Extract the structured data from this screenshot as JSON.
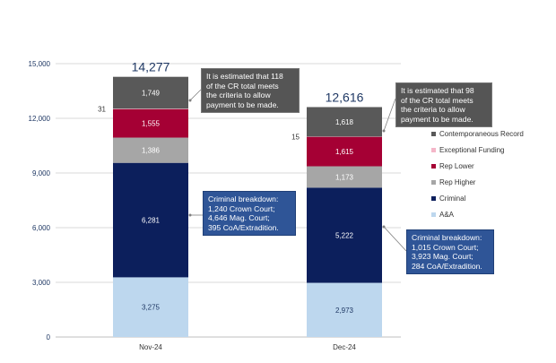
{
  "chart_data": {
    "type": "bar",
    "stacked": true,
    "categories": [
      "Nov-24",
      "Dec-24"
    ],
    "ylim": [
      0,
      15000
    ],
    "yticks": [
      "0",
      "3,000",
      "6,000",
      "9,000",
      "12,000",
      "15,000"
    ],
    "ytick_values": [
      0,
      3000,
      6000,
      9000,
      12000,
      15000
    ],
    "grid": true,
    "legend_position": "right",
    "series": [
      {
        "name": "A&A",
        "color": "#bdd7ee",
        "label_color": "#1f3864",
        "values": [
          3275,
          2973
        ],
        "labels": [
          "3,275",
          "2,973"
        ]
      },
      {
        "name": "Criminal",
        "color": "#0c1f5c",
        "label_color": "#ffffff",
        "values": [
          6281,
          5222
        ],
        "labels": [
          "6,281",
          "5,222"
        ]
      },
      {
        "name": "Rep Higher",
        "color": "#a6a6a6",
        "label_color": "#ffffff",
        "values": [
          1386,
          1173
        ],
        "labels": [
          "1,386",
          "1,173"
        ]
      },
      {
        "name": "Rep Lower",
        "color": "#a50034",
        "label_color": "#ffffff",
        "values": [
          1555,
          1615
        ],
        "labels": [
          "1,555",
          "1,615"
        ]
      },
      {
        "name": "Exceptional Funding",
        "color": "#f4b6c8",
        "label_color": "#333333",
        "values": [
          31,
          15
        ],
        "labels": [
          "31",
          "15"
        ]
      },
      {
        "name": "Contemporaneous Record",
        "color": "#595959",
        "label_color": "#ffffff",
        "values": [
          1749,
          1618
        ],
        "labels": [
          "1,749",
          "1,618"
        ]
      }
    ],
    "totals": [
      "14,277",
      "12,616"
    ],
    "annotations": [
      "It is estimated that 118\nof the CR total meets\nthe criteria to allow\npayment to be made.",
      "Criminal breakdown:\n1,240 Crown Court;\n4,646 Mag. Court;\n395 CoA/Extradition.",
      "It is estimated that 98\nof the CR total meets\nthe criteria to allow\npayment to be made.",
      "Criminal breakdown:\n1,015 Crown Court;\n3,923 Mag. Court;\n284 CoA/Extradition."
    ]
  }
}
